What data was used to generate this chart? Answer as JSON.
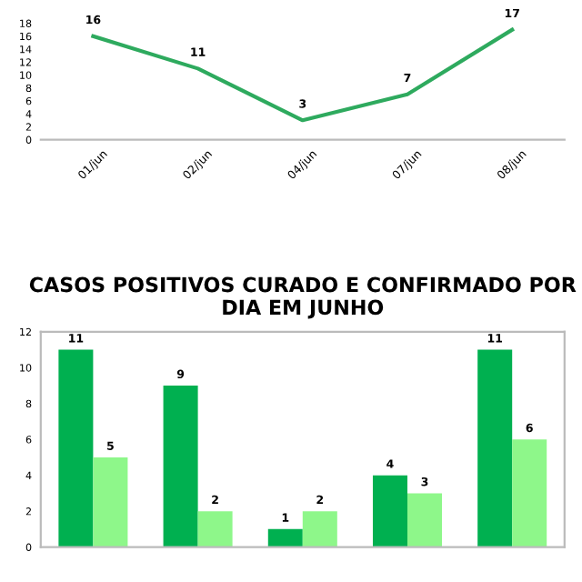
{
  "chart_data": [
    {
      "type": "line",
      "categories": [
        "01/jun",
        "02/jun",
        "04/jun",
        "07/jun",
        "08/jun"
      ],
      "series": [
        {
          "color": "#2eaa5e",
          "values": [
            16,
            11,
            3,
            7,
            17
          ]
        }
      ],
      "ylim": [
        0,
        18
      ],
      "yticks": [
        0,
        2,
        4,
        6,
        8,
        10,
        12,
        14,
        16,
        18
      ],
      "data_labels": true,
      "grid": false,
      "legend": false
    },
    {
      "type": "bar",
      "title": "CASOS POSITIVOS CURADO E CONFIRMADO POR DIA EM JUNHO",
      "categories": [
        null,
        null,
        null,
        null,
        null
      ],
      "series": [
        {
          "color": "#00b050",
          "values": [
            11,
            9,
            1,
            4,
            11
          ]
        },
        {
          "color": "#8ef78a",
          "values": [
            5,
            2,
            2,
            3,
            6
          ]
        }
      ],
      "ylim": [
        0,
        12
      ],
      "yticks": [
        0,
        2,
        4,
        6,
        8,
        10,
        12
      ],
      "data_labels": true,
      "grid": false,
      "legend": false
    }
  ]
}
